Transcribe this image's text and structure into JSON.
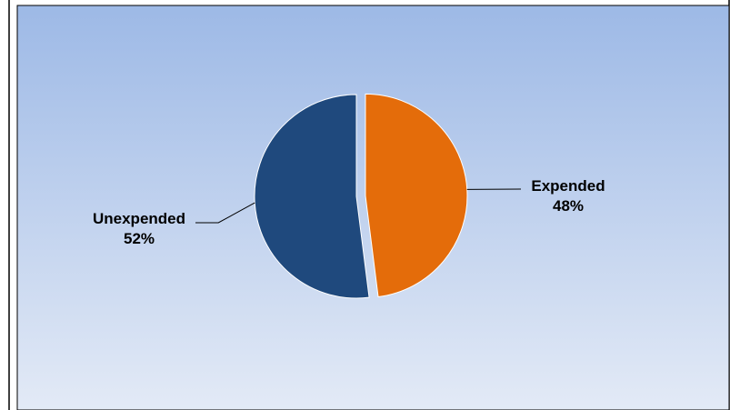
{
  "chart_data": {
    "type": "pie",
    "title": "",
    "slices": [
      {
        "label": "Expended",
        "percent_label": "48%",
        "value": 48,
        "color": "#E46C0A"
      },
      {
        "label": "Unexpended",
        "percent_label": "52%",
        "value": 52,
        "color": "#1F497D"
      }
    ],
    "legend": "none",
    "background": {
      "gradient_top": "#9DB9E6",
      "gradient_bottom": "#E3EAF6"
    },
    "exploded_slice": "Expended"
  }
}
